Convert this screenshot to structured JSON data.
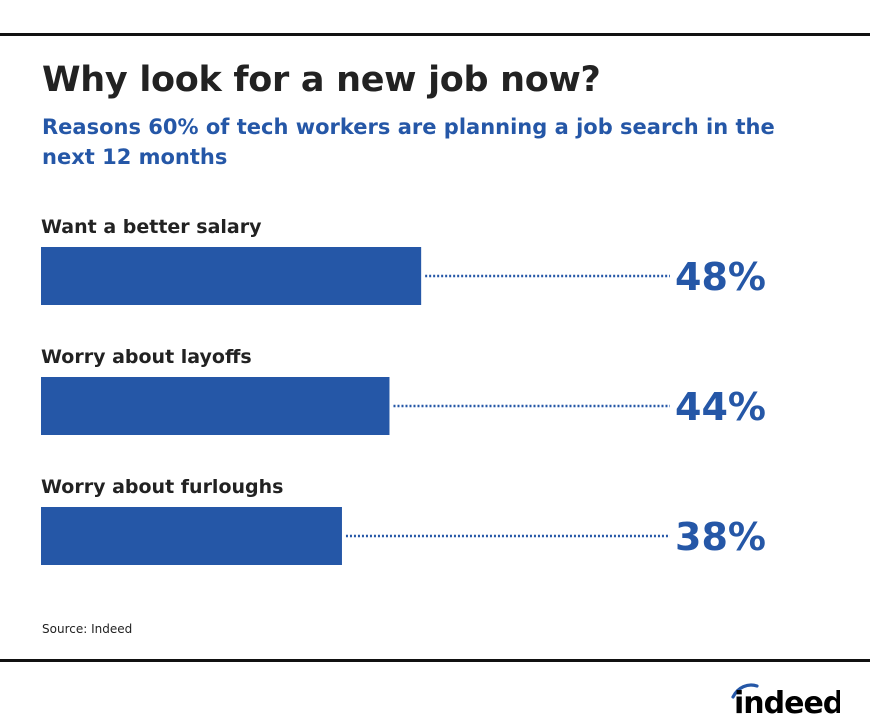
{
  "header": {
    "title": "Why look for a new job now?",
    "subtitle": "Reasons 60% of tech workers are planning a job search in the next 12 months"
  },
  "chart_data": {
    "type": "bar",
    "orientation": "horizontal",
    "categories": [
      "Want a better salary",
      "Worry about layoffs",
      "Worry about furloughs"
    ],
    "values": [
      48,
      44,
      38
    ],
    "value_labels": [
      "48%",
      "44%",
      "38%"
    ],
    "unit": "%",
    "xlim": [
      0,
      100
    ],
    "grid": false,
    "legend": "none",
    "bar_color": "#2557a7",
    "leader_style": "dotted"
  },
  "footer": {
    "source": "Source: Indeed",
    "logo_text": "indeed"
  },
  "colors": {
    "accent": "#2557a7",
    "text": "#222222",
    "rule": "#111111"
  }
}
